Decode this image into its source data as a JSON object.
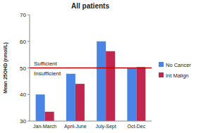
{
  "chart_data": {
    "type": "bar",
    "title": "All patients",
    "y_label": "Mean 25OHD (nmol/L)",
    "categories": [
      "Jan-March",
      "April-June",
      "July-Sept",
      "Oct-Dec"
    ],
    "series": [
      {
        "name": "No Cancer",
        "color": "#4a84e4",
        "values": [
          40,
          47.8,
          60,
          50
        ]
      },
      {
        "name": "Int Malign",
        "color": "#c0264e",
        "values": [
          33.5,
          44,
          56.3,
          50.3
        ]
      }
    ],
    "ylim": [
      30,
      70
    ],
    "yticks": [
      30,
      40,
      50,
      60,
      70
    ],
    "grid": false,
    "legend": "right",
    "threshold": 50,
    "annotations": [
      "Sufficient",
      "Insufficient"
    ]
  }
}
